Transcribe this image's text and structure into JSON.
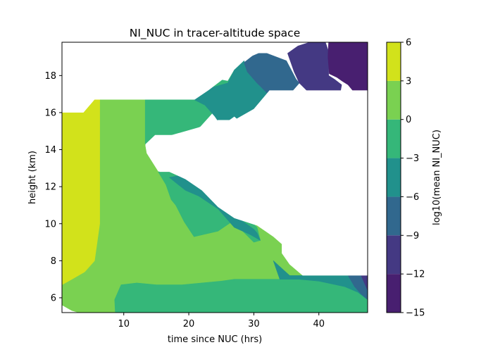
{
  "chart_data": {
    "type": "heatmap",
    "subtype": "filled-contour",
    "title": "NI_NUC in tracer-altitude space",
    "xlabel": "time since NUC (hrs)",
    "ylabel": "height (km)",
    "xlim": [
      0.5,
      47.5
    ],
    "ylim": [
      5.2,
      19.8
    ],
    "xticks": [
      10,
      20,
      30,
      40
    ],
    "yticks": [
      6,
      8,
      10,
      12,
      14,
      16,
      18
    ],
    "colorbar": {
      "label": "log10(mean NI_NUC)",
      "levels": [
        -15,
        -12,
        -9,
        -6,
        -3,
        0,
        3,
        6
      ],
      "colors": [
        "#481f70",
        "#443983",
        "#31688e",
        "#21918c",
        "#35b779",
        "#7ad151",
        "#d2e21b"
      ]
    },
    "regions": [
      {
        "level_range": [
          0,
          3
        ],
        "polygon": [
          [
            0.5,
            5.2
          ],
          [
            0.5,
            6.7
          ],
          [
            2,
            7.2
          ],
          [
            4,
            8.0
          ],
          [
            5.5,
            10.0
          ],
          [
            6.3,
            16.7
          ],
          [
            13.3,
            16.7
          ],
          [
            13.3,
            14.2
          ],
          [
            13.5,
            13.8
          ],
          [
            15.3,
            12.8
          ],
          [
            17,
            12.8
          ],
          [
            19,
            12.6
          ],
          [
            22,
            12.4
          ],
          [
            26,
            11.5
          ],
          [
            27,
            10.7
          ],
          [
            30,
            10.2
          ],
          [
            34,
            9.3
          ],
          [
            37,
            7.7
          ],
          [
            39,
            7.2
          ],
          [
            47.5,
            7.2
          ],
          [
            47.5,
            5.2
          ]
        ]
      },
      {
        "level_range": [
          3,
          6
        ],
        "polygon": [
          [
            0.5,
            6.7
          ],
          [
            0.5,
            16.0
          ],
          [
            3.8,
            16.0
          ],
          [
            5.5,
            16.7
          ],
          [
            6.3,
            16.7
          ],
          [
            6.3,
            10.0
          ],
          [
            5.5,
            8.0
          ],
          [
            4,
            7.4
          ],
          [
            2,
            7.0
          ]
        ]
      },
      {
        "level_range": [
          -3,
          0
        ],
        "polygon": [
          [
            8.7,
            5.2
          ],
          [
            8.6,
            5.9
          ],
          [
            9.6,
            6.7
          ],
          [
            12,
            6.8
          ],
          [
            15,
            6.7
          ],
          [
            19,
            6.7
          ],
          [
            25,
            6.9
          ],
          [
            27,
            7.0
          ],
          [
            30,
            7.0
          ],
          [
            33,
            7.0
          ],
          [
            36,
            7.0
          ],
          [
            38,
            7.05
          ],
          [
            40,
            7.0
          ],
          [
            44,
            6.6
          ],
          [
            46.5,
            6.3
          ],
          [
            47.5,
            5.9
          ],
          [
            47.5,
            5.2
          ]
        ]
      },
      {
        "level_range": [
          -3,
          0
        ],
        "polygon": [
          [
            13.3,
            16.7
          ],
          [
            20.8,
            16.7
          ],
          [
            21,
            17.0
          ],
          [
            22.5,
            17.6
          ],
          [
            24.5,
            17.8
          ],
          [
            26,
            17.7
          ],
          [
            27,
            18.3
          ],
          [
            29,
            18.7
          ],
          [
            29,
            18.2
          ],
          [
            26.5,
            17.1
          ],
          [
            25.3,
            16.8
          ],
          [
            24.2,
            16.2
          ],
          [
            20.6,
            14.8
          ],
          [
            14.8,
            14.8
          ],
          [
            13.3,
            14.3
          ]
        ]
      },
      {
        "level_range": [
          -3,
          0
        ],
        "polygon": [
          [
            15.3,
            12.8
          ],
          [
            16.5,
            12.1
          ],
          [
            17.3,
            11.3
          ],
          [
            18,
            11.0
          ],
          [
            19.3,
            10.1
          ],
          [
            20.8,
            9.3
          ],
          [
            24.5,
            9.6
          ],
          [
            27,
            10.2
          ],
          [
            29,
            10.3
          ],
          [
            30.5,
            9.8
          ],
          [
            31,
            9.1
          ],
          [
            30,
            9.0
          ],
          [
            28,
            9.7
          ],
          [
            25.7,
            10.4
          ],
          [
            24.3,
            11.2
          ],
          [
            22.4,
            12.0
          ],
          [
            20,
            12.4
          ],
          [
            17,
            12.8
          ]
        ]
      },
      {
        "level_range": [
          -6,
          -3
        ],
        "polygon": [
          [
            17,
            12.5
          ],
          [
            18.5,
            12.6
          ],
          [
            21,
            12.3
          ],
          [
            24.2,
            11.4
          ],
          [
            25.8,
            10.7
          ],
          [
            28,
            10.2
          ],
          [
            30,
            9.7
          ],
          [
            30.5,
            9.5
          ],
          [
            31,
            9.1
          ],
          [
            29.5,
            9.4
          ],
          [
            27,
            9.8
          ],
          [
            24.5,
            10.8
          ],
          [
            21.5,
            11.5
          ],
          [
            19.5,
            11.8
          ]
        ]
      },
      {
        "level_range": [
          -6,
          -3
        ],
        "polygon": [
          [
            20.8,
            16.7
          ],
          [
            23,
            17.3
          ],
          [
            26,
            17.6
          ],
          [
            27,
            18.3
          ],
          [
            28.5,
            18.8
          ],
          [
            29,
            18.2
          ],
          [
            31,
            17.4
          ],
          [
            33,
            16.8
          ],
          [
            34.5,
            16.4
          ],
          [
            33.5,
            15.6
          ],
          [
            32,
            15.1
          ],
          [
            28,
            15.5
          ],
          [
            27,
            15.8
          ],
          [
            25,
            15.3
          ],
          [
            24,
            15.8
          ],
          [
            22.5,
            16.4
          ]
        ]
      },
      {
        "level_range": [
          -6,
          -3
        ],
        "polygon": [
          [
            33,
            8.0
          ],
          [
            35.5,
            7.2
          ],
          [
            39,
            7.2
          ],
          [
            44,
            7.2
          ],
          [
            47.5,
            7.2
          ],
          [
            47.5,
            5.9
          ],
          [
            46,
            6.3
          ],
          [
            44,
            6.6
          ],
          [
            40,
            6.9
          ],
          [
            37,
            7.0
          ],
          [
            34,
            7.0
          ]
        ]
      },
      {
        "level_range": [
          -9,
          -6
        ],
        "polygon": [
          [
            28.5,
            18.7
          ],
          [
            30.3,
            19.2
          ],
          [
            32,
            19.2
          ],
          [
            35,
            18.8
          ],
          [
            36.5,
            17.8
          ],
          [
            37,
            17.6
          ],
          [
            36,
            17.2
          ],
          [
            35.2,
            16.7
          ],
          [
            34,
            16.5
          ],
          [
            32.5,
            16.9
          ],
          [
            30.5,
            17.6
          ],
          [
            29,
            18.2
          ]
        ]
      },
      {
        "level_range": [
          -9,
          -6
        ],
        "polygon": [
          [
            44.5,
            7.2
          ],
          [
            47.5,
            7.2
          ],
          [
            47.5,
            5.9
          ],
          [
            46.5,
            6.2
          ],
          [
            45.5,
            6.6
          ]
        ]
      },
      {
        "level_range": [
          -12,
          -9
        ],
        "polygon": [
          [
            35.2,
            19.2
          ],
          [
            36.8,
            19.6
          ],
          [
            38.6,
            19.8
          ],
          [
            41,
            19.8
          ],
          [
            41.5,
            19.3
          ],
          [
            41.5,
            18.0
          ],
          [
            42.4,
            17.8
          ],
          [
            43.5,
            17.5
          ],
          [
            43.3,
            17.1
          ],
          [
            42,
            16.7
          ],
          [
            40.5,
            16.6
          ],
          [
            39,
            16.9
          ],
          [
            37,
            17.6
          ],
          [
            36.2,
            18.2
          ]
        ]
      },
      {
        "level_range": [
          -12,
          -9
        ],
        "polygon": [
          [
            46.5,
            7.2
          ],
          [
            47.5,
            7.2
          ],
          [
            47.5,
            6.4
          ],
          [
            47,
            6.8
          ]
        ]
      },
      {
        "level_range": [
          -15,
          -12
        ],
        "polygon": [
          [
            41.5,
            19.8
          ],
          [
            47.5,
            19.8
          ],
          [
            47.5,
            17.2
          ],
          [
            45.2,
            17.2
          ],
          [
            44.5,
            17.5
          ],
          [
            43.6,
            17.7
          ],
          [
            42.8,
            17.9
          ],
          [
            41.6,
            18.1
          ],
          [
            41.4,
            19.0
          ]
        ]
      }
    ],
    "blank_regions": [
      {
        "polygon": [
          [
            47.5,
            17.2
          ],
          [
            32.4,
            17.2
          ],
          [
            30,
            16.2
          ],
          [
            27,
            15.6
          ],
          [
            24.5,
            15.6
          ],
          [
            21.5,
            15.2
          ],
          [
            15.5,
            14.6
          ],
          [
            14.3,
            13.9
          ],
          [
            13.7,
            14.4
          ],
          [
            15.5,
            12.8
          ],
          [
            17,
            12.8
          ],
          [
            19.5,
            12.4
          ],
          [
            22,
            11.8
          ],
          [
            24.5,
            10.9
          ],
          [
            27,
            10.3
          ],
          [
            30.5,
            9.9
          ],
          [
            33,
            9.3
          ],
          [
            34.3,
            8.9
          ],
          [
            34.3,
            8.4
          ],
          [
            35.5,
            7.8
          ],
          [
            37.5,
            7.2
          ],
          [
            47.5,
            7.2
          ]
        ]
      },
      {
        "polygon": [
          [
            0.5,
            17.2
          ],
          [
            0.5,
            19.8
          ],
          [
            31,
            19.8
          ],
          [
            32,
            19.4
          ],
          [
            30,
            19.1
          ],
          [
            28,
            18.8
          ],
          [
            26,
            18.0
          ],
          [
            23,
            17.2
          ],
          [
            20.9,
            16.7
          ],
          [
            5.5,
            16.7
          ],
          [
            3.8,
            16.0
          ],
          [
            0.5,
            16.0
          ]
        ]
      },
      {
        "polygon": [
          [
            0.5,
            5.2
          ],
          [
            0.5,
            5.6
          ],
          [
            2,
            5.3
          ],
          [
            3,
            5.2
          ]
        ]
      }
    ]
  }
}
